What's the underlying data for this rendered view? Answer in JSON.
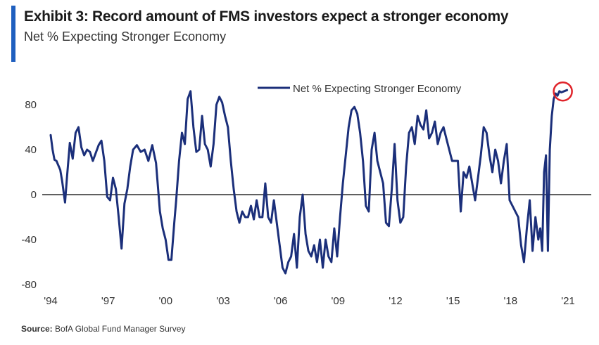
{
  "header": {
    "title": "Exhibit 3: Record amount of FMS investors expect a stronger economy",
    "subtitle": "Net % Expecting Stronger Economy"
  },
  "footer": {
    "source_label": "Source:",
    "source_text": "BofA Global Fund Manager Survey"
  },
  "colors": {
    "accent": "#1f5fbf",
    "series": "#1b2f7a",
    "highlight": "#e0242b",
    "zero_line": "#000000"
  },
  "chart_data": {
    "type": "line",
    "title": "Exhibit 3: Record amount of FMS investors expect a stronger economy",
    "subtitle": "Net % Expecting Stronger Economy",
    "xlabel": "",
    "ylabel": "",
    "xlim": [
      1994,
      2021.2
    ],
    "ylim": [
      -85,
      95
    ],
    "x_ticks": [
      {
        "value": 1994,
        "label": "'94"
      },
      {
        "value": 1997,
        "label": "'97"
      },
      {
        "value": 2000,
        "label": "'00"
      },
      {
        "value": 2003,
        "label": "'03"
      },
      {
        "value": 2006,
        "label": "'06"
      },
      {
        "value": 2009,
        "label": "'09"
      },
      {
        "value": 2012,
        "label": "'12"
      },
      {
        "value": 2015,
        "label": "'15"
      },
      {
        "value": 2018,
        "label": "'18"
      },
      {
        "value": 2021,
        "label": "'21"
      }
    ],
    "y_ticks": [
      {
        "value": 80,
        "label": "80"
      },
      {
        "value": 40,
        "label": "40"
      },
      {
        "value": 0,
        "label": "0"
      },
      {
        "value": -40,
        "label": "-40"
      },
      {
        "value": -80,
        "label": "-80"
      }
    ],
    "grid": false,
    "legend": "top-center",
    "annotation": "red circle marking latest record reading",
    "series": [
      {
        "name": "Net % Expecting Stronger Economy",
        "x": [
          1994.0,
          1994.1,
          1994.2,
          1994.3,
          1994.5,
          1994.6,
          1994.75,
          1994.85,
          1995.0,
          1995.15,
          1995.3,
          1995.45,
          1995.6,
          1995.75,
          1995.9,
          1996.05,
          1996.2,
          1996.35,
          1996.5,
          1996.65,
          1996.8,
          1996.95,
          1997.1,
          1997.25,
          1997.4,
          1997.55,
          1997.7,
          1997.85,
          1998.0,
          1998.15,
          1998.3,
          1998.5,
          1998.7,
          1998.9,
          1999.1,
          1999.3,
          1999.5,
          1999.7,
          1999.85,
          2000.0,
          2000.15,
          2000.3,
          2000.45,
          2000.55,
          2000.7,
          2000.85,
          2001.0,
          2001.15,
          2001.3,
          2001.45,
          2001.6,
          2001.75,
          2001.9,
          2002.05,
          2002.2,
          2002.35,
          2002.5,
          2002.65,
          2002.8,
          2002.95,
          2003.1,
          2003.25,
          2003.4,
          2003.55,
          2003.7,
          2003.85,
          2004.0,
          2004.15,
          2004.3,
          2004.45,
          2004.6,
          2004.75,
          2004.9,
          2005.05,
          2005.2,
          2005.35,
          2005.5,
          2005.65,
          2005.8,
          2005.95,
          2006.1,
          2006.25,
          2006.4,
          2006.55,
          2006.7,
          2006.85,
          2007.0,
          2007.15,
          2007.3,
          2007.45,
          2007.6,
          2007.75,
          2007.9,
          2008.05,
          2008.2,
          2008.35,
          2008.5,
          2008.65,
          2008.8,
          2008.95,
          2009.1,
          2009.25,
          2009.4,
          2009.55,
          2009.7,
          2009.85,
          2010.0,
          2010.15,
          2010.3,
          2010.45,
          2010.6,
          2010.75,
          2010.9,
          2011.05,
          2011.2,
          2011.35,
          2011.5,
          2011.65,
          2011.8,
          2011.95,
          2012.1,
          2012.25,
          2012.4,
          2012.55,
          2012.7,
          2012.85,
          2013.0,
          2013.15,
          2013.3,
          2013.45,
          2013.6,
          2013.75,
          2013.9,
          2014.05,
          2014.2,
          2014.35,
          2014.5,
          2014.65,
          2014.8,
          2014.95,
          2015.1,
          2015.25,
          2015.4,
          2015.55,
          2015.7,
          2015.85,
          2016.0,
          2016.15,
          2016.3,
          2016.45,
          2016.6,
          2016.75,
          2016.9,
          2017.05,
          2017.2,
          2017.35,
          2017.5,
          2017.65,
          2017.8,
          2017.95,
          2018.1,
          2018.25,
          2018.4,
          2018.55,
          2018.7,
          2018.85,
          2019.0,
          2019.15,
          2019.3,
          2019.45,
          2019.55,
          2019.65,
          2019.75,
          2019.85,
          2019.95,
          2020.05,
          2020.15,
          2020.25,
          2020.35,
          2020.45,
          2020.55,
          2020.65,
          2020.8,
          2020.95
        ],
        "values": [
          53,
          40,
          31,
          30,
          22,
          12,
          -7,
          15,
          46,
          32,
          55,
          60,
          42,
          35,
          40,
          38,
          30,
          37,
          44,
          48,
          30,
          -2,
          -5,
          15,
          5,
          -20,
          -48,
          -8,
          5,
          25,
          40,
          44,
          38,
          40,
          30,
          44,
          28,
          -15,
          -30,
          -40,
          -58,
          -58,
          -25,
          -5,
          30,
          55,
          45,
          85,
          92,
          60,
          38,
          40,
          70,
          45,
          40,
          25,
          45,
          80,
          87,
          82,
          70,
          60,
          30,
          5,
          -15,
          -25,
          -15,
          -20,
          -20,
          -10,
          -22,
          -5,
          -20,
          -20,
          10,
          -20,
          -25,
          -5,
          -25,
          -45,
          -65,
          -70,
          -60,
          -55,
          -35,
          -65,
          -20,
          0,
          -35,
          -50,
          -55,
          -45,
          -60,
          -40,
          -65,
          -40,
          -55,
          -60,
          -30,
          -55,
          -20,
          10,
          35,
          60,
          75,
          78,
          72,
          55,
          30,
          -10,
          -15,
          40,
          55,
          30,
          20,
          10,
          -25,
          -28,
          5,
          45,
          -5,
          -25,
          -20,
          25,
          55,
          60,
          45,
          70,
          62,
          58,
          75,
          50,
          55,
          65,
          45,
          55,
          60,
          50,
          40,
          30,
          30,
          30,
          -15,
          20,
          15,
          25,
          10,
          -5,
          15,
          35,
          60,
          55,
          35,
          20,
          40,
          30,
          10,
          30,
          45,
          -5,
          -10,
          -15,
          -20,
          -45,
          -60,
          -30,
          -5,
          -50,
          -20,
          -40,
          -30,
          -50,
          20,
          35,
          -50,
          40,
          70,
          85,
          90,
          88,
          92,
          91,
          92,
          93
        ]
      }
    ]
  }
}
